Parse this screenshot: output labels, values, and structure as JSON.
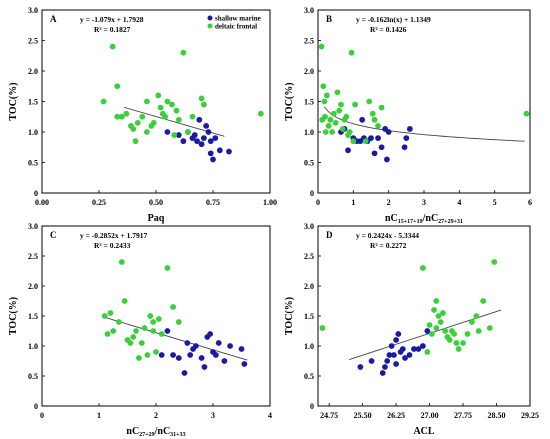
{
  "colors": {
    "shallow": "#1a1aa6",
    "deltaic": "#39d039",
    "fit": "#444444"
  },
  "chart_data": [
    {
      "type": "scatter",
      "panel": "A",
      "equation": "y = -1.079x + 1.7928",
      "r2": "R² = 0.1827",
      "xlabel": "Paq",
      "ylabel": "TOC(%)",
      "xlim": [
        0,
        1
      ],
      "ylim": [
        0,
        3
      ],
      "xticks": [
        "0.00",
        "0.25",
        "0.50",
        "0.75",
        "1.00"
      ],
      "yticks": [
        "0",
        "0.5",
        "1.0",
        "1.5",
        "2.0",
        "2.5",
        "3.0"
      ],
      "legend": [
        "shallow marine",
        "deltaic frontal"
      ],
      "fit": {
        "kind": "linear",
        "a": -1.079,
        "b": 1.7928,
        "from": 0.36,
        "to": 0.8
      },
      "series": [
        {
          "name": "shallow marine",
          "color": "shallow",
          "points": [
            [
              0.55,
              1.0
            ],
            [
              0.6,
              0.95
            ],
            [
              0.62,
              0.85
            ],
            [
              0.64,
              1.0
            ],
            [
              0.66,
              0.9
            ],
            [
              0.67,
              0.95
            ],
            [
              0.68,
              0.85
            ],
            [
              0.69,
              1.2
            ],
            [
              0.7,
              0.8
            ],
            [
              0.71,
              0.9
            ],
            [
              0.72,
              1.1
            ],
            [
              0.73,
              1.0
            ],
            [
              0.74,
              0.85
            ],
            [
              0.74,
              0.65
            ],
            [
              0.75,
              0.55
            ],
            [
              0.76,
              0.9
            ],
            [
              0.78,
              0.7
            ],
            [
              0.82,
              0.68
            ]
          ]
        },
        {
          "name": "deltaic frontal",
          "color": "deltaic",
          "points": [
            [
              0.27,
              1.5
            ],
            [
              0.31,
              2.4
            ],
            [
              0.33,
              1.75
            ],
            [
              0.33,
              1.25
            ],
            [
              0.35,
              1.25
            ],
            [
              0.37,
              1.3
            ],
            [
              0.39,
              1.1
            ],
            [
              0.4,
              1.05
            ],
            [
              0.41,
              0.85
            ],
            [
              0.42,
              1.15
            ],
            [
              0.44,
              1.25
            ],
            [
              0.46,
              1.5
            ],
            [
              0.48,
              1.1
            ],
            [
              0.49,
              1.15
            ],
            [
              0.51,
              1.6
            ],
            [
              0.52,
              1.4
            ],
            [
              0.53,
              1.3
            ],
            [
              0.54,
              1.25
            ],
            [
              0.55,
              1.5
            ],
            [
              0.57,
              1.45
            ],
            [
              0.58,
              0.95
            ],
            [
              0.59,
              1.35
            ],
            [
              0.6,
              1.2
            ],
            [
              0.62,
              2.3
            ],
            [
              0.64,
              1.0
            ],
            [
              0.66,
              1.25
            ],
            [
              0.7,
              1.55
            ],
            [
              0.71,
              1.45
            ],
            [
              0.96,
              1.3
            ],
            [
              0.46,
              1.0
            ]
          ]
        }
      ]
    },
    {
      "type": "scatter",
      "panel": "B",
      "equation": "y = -0.162ln(x) + 1.1349",
      "r2": "R² = 0.1426",
      "xlabel": "nC",
      "xlabel_sub": "15+17+19",
      "xlabel_mid": "/nC",
      "xlabel_sub2": "27+29+31",
      "ylabel": "TOC(%)",
      "xlim": [
        0,
        6
      ],
      "ylim": [
        0,
        3
      ],
      "xticks": [
        "0",
        "1",
        "2",
        "3",
        "4",
        "5",
        "6"
      ],
      "yticks": [
        "0",
        "0.5",
        "1.0",
        "1.5",
        "2.0",
        "2.5",
        "3.0"
      ],
      "fit": {
        "kind": "log",
        "a": -0.162,
        "b": 1.1349,
        "from": 0.18,
        "to": 5.85
      },
      "series": [
        {
          "name": "shallow marine",
          "color": "shallow",
          "points": [
            [
              0.75,
              1.05
            ],
            [
              0.85,
              0.7
            ],
            [
              1.0,
              0.9
            ],
            [
              1.1,
              0.85
            ],
            [
              1.2,
              0.85
            ],
            [
              1.3,
              0.9
            ],
            [
              1.4,
              0.85
            ],
            [
              1.5,
              0.9
            ],
            [
              1.6,
              0.65
            ],
            [
              1.7,
              0.9
            ],
            [
              1.8,
              0.75
            ],
            [
              1.9,
              1.05
            ],
            [
              1.95,
              0.55
            ],
            [
              2.0,
              1.0
            ],
            [
              2.5,
              0.9
            ],
            [
              2.6,
              1.05
            ],
            [
              0.65,
              1.0
            ],
            [
              1.25,
              1.2
            ],
            [
              2.45,
              0.75
            ]
          ]
        },
        {
          "name": "deltaic frontal",
          "color": "deltaic",
          "points": [
            [
              0.1,
              2.4
            ],
            [
              0.15,
              1.75
            ],
            [
              0.18,
              1.5
            ],
            [
              0.2,
              1.25
            ],
            [
              0.25,
              1.6
            ],
            [
              0.3,
              1.1
            ],
            [
              0.35,
              1.2
            ],
            [
              0.4,
              1.0
            ],
            [
              0.45,
              1.3
            ],
            [
              0.5,
              1.15
            ],
            [
              0.55,
              1.65
            ],
            [
              0.6,
              1.35
            ],
            [
              0.65,
              1.45
            ],
            [
              0.7,
              1.05
            ],
            [
              0.75,
              1.2
            ],
            [
              0.8,
              1.25
            ],
            [
              0.85,
              0.95
            ],
            [
              0.9,
              1.0
            ],
            [
              0.95,
              2.3
            ],
            [
              1.0,
              0.85
            ],
            [
              1.05,
              1.45
            ],
            [
              1.45,
              1.5
            ],
            [
              1.55,
              1.3
            ],
            [
              1.6,
              1.2
            ],
            [
              1.7,
              1.1
            ],
            [
              1.8,
              1.4
            ],
            [
              5.9,
              1.3
            ],
            [
              0.12,
              1.2
            ],
            [
              0.22,
              1.0
            ],
            [
              1.35,
              0.85
            ]
          ]
        }
      ]
    },
    {
      "type": "scatter",
      "panel": "C",
      "equation": "y = -0.2852x + 1.7917",
      "r2": "R² = 0.2433",
      "xlabel": "nC",
      "xlabel_sub": "27+29",
      "xlabel_mid": "/nC",
      "xlabel_sub2": "31+33",
      "ylabel": "TOC(%)",
      "xlim": [
        0,
        4
      ],
      "ylim": [
        0,
        3
      ],
      "xticks": [
        "0",
        "1",
        "2",
        "3",
        "4"
      ],
      "yticks": [
        "0",
        "0.5",
        "1.0",
        "1.5",
        "2.0",
        "2.5",
        "3.0"
      ],
      "fit": {
        "kind": "linear",
        "a": -0.2852,
        "b": 1.7917,
        "from": 1.1,
        "to": 3.6
      },
      "series": [
        {
          "name": "shallow marine",
          "color": "shallow",
          "points": [
            [
              2.1,
              0.85
            ],
            [
              2.3,
              0.85
            ],
            [
              2.4,
              0.8
            ],
            [
              2.5,
              0.55
            ],
            [
              2.55,
              1.05
            ],
            [
              2.6,
              0.85
            ],
            [
              2.65,
              0.95
            ],
            [
              2.7,
              1.0
            ],
            [
              2.8,
              0.8
            ],
            [
              2.85,
              0.65
            ],
            [
              2.9,
              1.15
            ],
            [
              2.95,
              1.2
            ],
            [
              3.0,
              0.9
            ],
            [
              3.05,
              0.85
            ],
            [
              3.1,
              1.05
            ],
            [
              3.2,
              0.75
            ],
            [
              3.3,
              1.0
            ],
            [
              3.5,
              0.95
            ],
            [
              3.55,
              0.7
            ],
            [
              2.2,
              1.25
            ]
          ]
        },
        {
          "name": "deltaic frontal",
          "color": "deltaic",
          "points": [
            [
              1.1,
              1.5
            ],
            [
              1.2,
              1.55
            ],
            [
              1.25,
              1.25
            ],
            [
              1.35,
              1.4
            ],
            [
              1.4,
              2.4
            ],
            [
              1.45,
              1.75
            ],
            [
              1.5,
              1.1
            ],
            [
              1.55,
              1.05
            ],
            [
              1.6,
              1.15
            ],
            [
              1.65,
              1.25
            ],
            [
              1.7,
              0.8
            ],
            [
              1.8,
              1.3
            ],
            [
              1.85,
              0.85
            ],
            [
              1.9,
              1.5
            ],
            [
              1.95,
              1.4
            ],
            [
              2.0,
              0.9
            ],
            [
              2.05,
              1.45
            ],
            [
              2.1,
              1.2
            ],
            [
              2.2,
              2.3
            ],
            [
              2.3,
              1.65
            ],
            [
              2.4,
              1.4
            ],
            [
              1.75,
              1.05
            ],
            [
              1.95,
              1.25
            ],
            [
              1.15,
              1.2
            ]
          ]
        }
      ]
    },
    {
      "type": "scatter",
      "panel": "D",
      "equation": "y = 0.2424x - 5.3344",
      "r2": "R² = 0.2272",
      "xlabel": "ACL",
      "ylabel": "TOC(%)",
      "xlim": [
        24.5,
        29.25
      ],
      "ylim": [
        0,
        3
      ],
      "xticks": [
        "24.75",
        "25.50",
        "26.25",
        "27.00",
        "27.75",
        "28.50",
        "29.25"
      ],
      "tick_values": [
        24.75,
        25.5,
        26.25,
        27.0,
        27.75,
        28.5,
        29.25
      ],
      "yticks": [
        "0",
        "0.5",
        "1.0",
        "1.5",
        "2.0",
        "2.5",
        "3.0"
      ],
      "fit": {
        "kind": "linear",
        "a": 0.2424,
        "b": -5.3344,
        "from": 25.2,
        "to": 28.6
      },
      "series": [
        {
          "name": "shallow marine",
          "color": "shallow",
          "points": [
            [
              25.45,
              0.65
            ],
            [
              25.7,
              0.75
            ],
            [
              25.95,
              0.55
            ],
            [
              26.0,
              0.65
            ],
            [
              26.1,
              0.85
            ],
            [
              26.2,
              0.85
            ],
            [
              26.25,
              1.1
            ],
            [
              26.3,
              1.2
            ],
            [
              26.35,
              0.9
            ],
            [
              26.45,
              0.8
            ],
            [
              26.55,
              0.85
            ],
            [
              26.65,
              0.95
            ],
            [
              26.75,
              0.95
            ],
            [
              26.85,
              1.0
            ],
            [
              26.95,
              1.25
            ],
            [
              26.15,
              1.0
            ],
            [
              26.4,
              0.95
            ],
            [
              26.05,
              0.75
            ],
            [
              26.25,
              0.7
            ]
          ]
        },
        {
          "name": "deltaic frontal",
          "color": "deltaic",
          "points": [
            [
              24.6,
              1.3
            ],
            [
              26.85,
              2.3
            ],
            [
              26.95,
              0.9
            ],
            [
              27.0,
              1.35
            ],
            [
              27.05,
              1.2
            ],
            [
              27.1,
              1.6
            ],
            [
              27.15,
              1.3
            ],
            [
              27.2,
              1.5
            ],
            [
              27.25,
              1.4
            ],
            [
              27.35,
              1.25
            ],
            [
              27.45,
              1.1
            ],
            [
              27.5,
              1.25
            ],
            [
              27.55,
              1.2
            ],
            [
              27.6,
              1.05
            ],
            [
              27.75,
              1.05
            ],
            [
              27.85,
              1.2
            ],
            [
              28.05,
              1.5
            ],
            [
              28.2,
              1.75
            ],
            [
              28.35,
              1.3
            ],
            [
              28.45,
              2.4
            ],
            [
              27.3,
              1.55
            ],
            [
              27.4,
              1.15
            ],
            [
              27.65,
              0.95
            ],
            [
              27.95,
              1.4
            ],
            [
              28.1,
              1.25
            ],
            [
              27.15,
              1.75
            ]
          ]
        }
      ]
    }
  ]
}
